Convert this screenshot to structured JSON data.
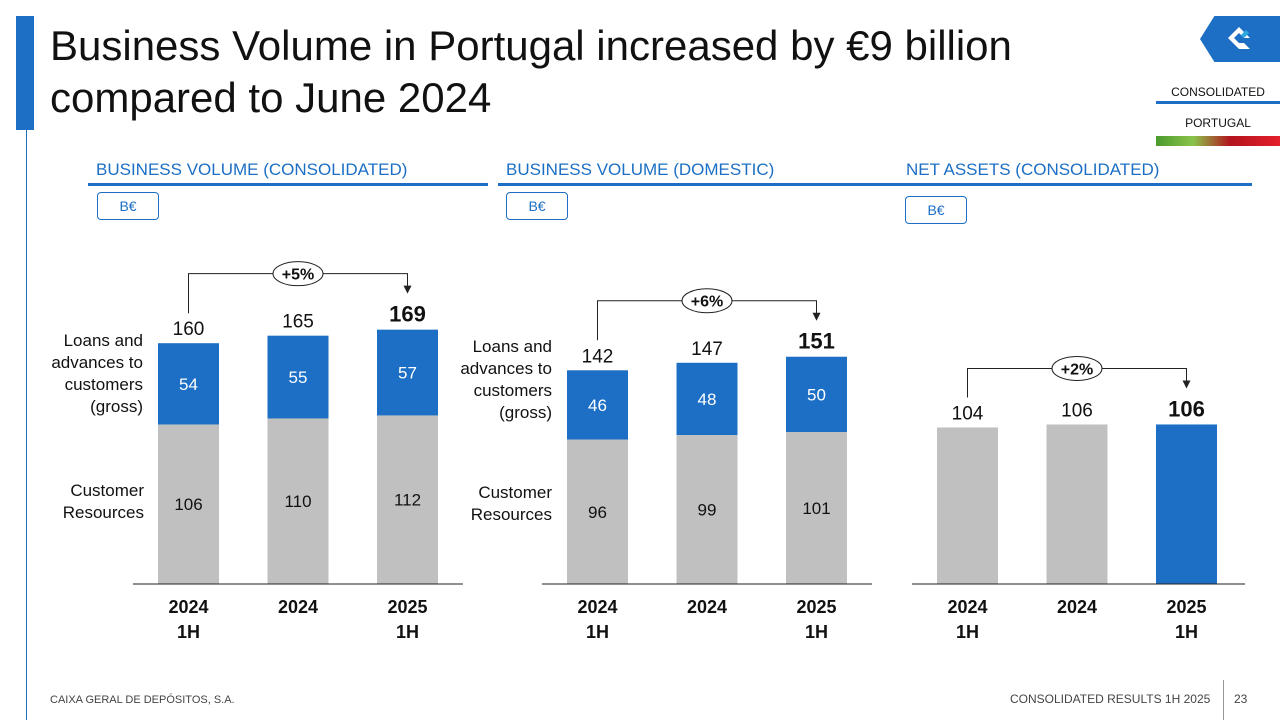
{
  "title": "Business Volume in Portugal increased by €9 billion compared to June 2024",
  "scope": {
    "consolidated": "CONSOLIDATED",
    "portugal": "PORTUGAL"
  },
  "colors": {
    "accent": "#1c6fc4",
    "grey": "#c0c0c0"
  },
  "row_labels": {
    "loans": "Loans and advances to customers (gross)",
    "resources": "Customer Resources"
  },
  "chart_data": [
    {
      "type": "bar",
      "title": "BUSINESS VOLUME (CONSOLIDATED)",
      "unit": "B€",
      "categories": [
        "2024 1H",
        "2024",
        "2025 1H"
      ],
      "series": [
        {
          "name": "Customer Resources",
          "values": [
            106,
            110,
            112
          ]
        },
        {
          "name": "Loans and advances to customers (gross)",
          "values": [
            54,
            55,
            57
          ]
        }
      ],
      "totals": [
        "160",
        "165",
        "169"
      ],
      "growth": "+5%"
    },
    {
      "type": "bar",
      "title": "BUSINESS VOLUME (DOMESTIC)",
      "unit": "B€",
      "categories": [
        "2024 1H",
        "2024",
        "2025 1H"
      ],
      "series": [
        {
          "name": "Customer Resources",
          "values": [
            96,
            99,
            101
          ]
        },
        {
          "name": "Loans and advances to customers (gross)",
          "values": [
            46,
            48,
            50
          ]
        }
      ],
      "totals": [
        "142",
        "147",
        "151"
      ],
      "growth": "+6%"
    },
    {
      "type": "bar",
      "title": "NET ASSETS (CONSOLIDATED)",
      "unit": "B€",
      "categories": [
        "2024 1H",
        "2024",
        "2025 1H"
      ],
      "series": [
        {
          "name": "Net Assets",
          "values": [
            104,
            106,
            106
          ]
        }
      ],
      "totals": [
        "104",
        "106",
        "106"
      ],
      "growth": "+2%"
    }
  ],
  "footer": {
    "company": "CAIXA GERAL DE DEPÓSITOS, S.A.",
    "report": "CONSOLIDATED RESULTS 1H 2025",
    "page": "23"
  }
}
